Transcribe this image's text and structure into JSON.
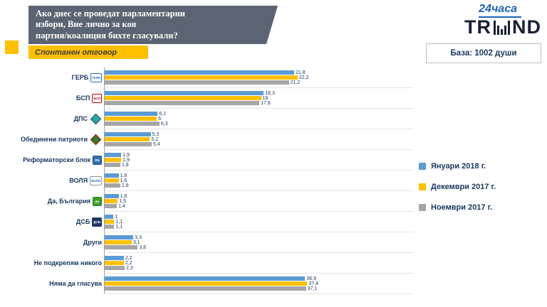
{
  "header": {
    "title_lines": [
      "Ако днес се проведат парламентарни",
      "избори, Вие лично за коя",
      "партия/коалиция бихте гласували?"
    ],
    "subtitle": "Спонтанен отговор"
  },
  "branding": {
    "logo24": "24часа",
    "trend_left": "TR",
    "trend_right": "ND",
    "base_label": "База: 1002 души"
  },
  "colors": {
    "series_jan2018": "#5B9BD5",
    "series_dec2017": "#FFC000",
    "series_nov2017": "#A6A6A6",
    "header_bg": "#5b6472",
    "accent_yellow": "#FFC000",
    "text_navy": "#17375e"
  },
  "chart_data": {
    "type": "bar",
    "orientation": "horizontal",
    "title": "Ако днес се проведат парламентарни избори, Вие лично за коя партия/коалиция бихте гласували?",
    "subtitle": "Спонтанен отговор",
    "sample_note": "База: 1002 души",
    "value_format": "percent, comma decimal separator",
    "xlim": [
      0,
      40
    ],
    "grid": false,
    "legend_position": "right",
    "categories": [
      "ГЕРБ",
      "БСП",
      "ДПС",
      "Обединени патриоти",
      "Реформаторски блок",
      "ВОЛЯ",
      "Да, България",
      "ДСБ",
      "Други",
      "Не подкрепям никого",
      "Няма да гласува"
    ],
    "series": [
      {
        "name": "Януари 2018 г.",
        "color": "#5B9BD5",
        "values": [
          21.8,
          18.3,
          6.1,
          5.3,
          1.9,
          1.6,
          1.6,
          1,
          3.3,
          2.2,
          36.9
        ]
      },
      {
        "name": "Декември 2017 г.",
        "color": "#FFC000",
        "values": [
          22.2,
          18,
          6,
          5.2,
          1.9,
          1.6,
          1.5,
          1.1,
          3.1,
          2.2,
          37.4
        ]
      },
      {
        "name": "Ноември 2017 г.",
        "color": "#A6A6A6",
        "values": [
          21.2,
          17.8,
          6.3,
          5.4,
          1.8,
          1.8,
          1.4,
          1.1,
          3.8,
          2.3,
          37.1
        ]
      }
    ]
  },
  "party_logos": [
    {
      "name": "gerb-party-logo-icon",
      "shape": "box",
      "bg": "#ffffff",
      "border": "#2e74b5",
      "fg": "#2e74b5",
      "text": "ГЕРБ"
    },
    {
      "name": "bsp-party-logo-icon",
      "shape": "box",
      "bg": "#ffffff",
      "border": "#c00000",
      "fg": "#c00000",
      "text": "БСП"
    },
    {
      "name": "dps-party-logo-icon",
      "shape": "diamond",
      "bg": "#29a8a0",
      "border": "#1f4e79"
    },
    {
      "name": "united-patriots-logo-icon",
      "shape": "diamond",
      "bg": "#2e7d32",
      "border": "#c00000"
    },
    {
      "name": "reformist-bloc-logo-icon",
      "shape": "box",
      "bg": "#2e74b5",
      "border": "#1f4e79",
      "fg": "#ffffff",
      "text": "РБ"
    },
    {
      "name": "volya-logo-icon",
      "shape": "box",
      "bg": "#ffffff",
      "border": "#8496b0",
      "fg": "#2e74b5",
      "text": "ВОЛЯ"
    },
    {
      "name": "da-bulgaria-logo-icon",
      "shape": "box",
      "bg": "#3a9d23",
      "border": "#2e7d32",
      "fg": "#ffffff",
      "text": "Да"
    },
    {
      "name": "dsb-logo-icon",
      "shape": "box",
      "bg": "#1f3864",
      "border": "#1f3864",
      "fg": "#ffffff",
      "text": "ДСБ"
    },
    null,
    null,
    null
  ]
}
